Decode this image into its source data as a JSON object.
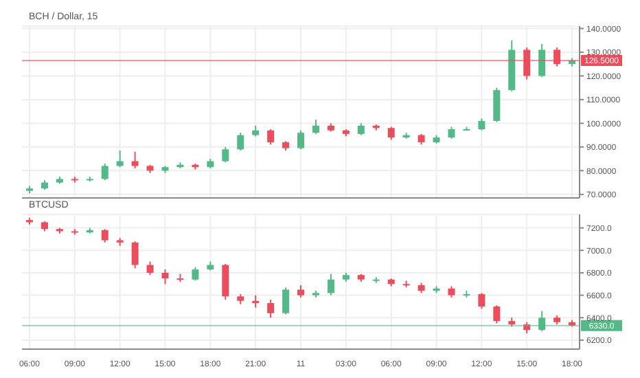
{
  "chart_data": [
    {
      "type": "candlestick",
      "title": "BCH / Dollar, 15",
      "categories": [
        null,
        null,
        null,
        null,
        null,
        null,
        null,
        null,
        null,
        null,
        null,
        null,
        null,
        null,
        null,
        null,
        null,
        null,
        null,
        null,
        null,
        null,
        null,
        null,
        null,
        null,
        null,
        null,
        null,
        null,
        null,
        null,
        null,
        null,
        null,
        null,
        null
      ],
      "ohlc": [
        [
          71.5,
          73.5,
          70.5,
          72.5
        ],
        [
          72.5,
          76,
          72,
          75
        ],
        [
          75,
          77.5,
          74.5,
          76.5
        ],
        [
          76.5,
          77.5,
          75,
          76
        ],
        [
          76,
          77.5,
          75.5,
          76.5
        ],
        [
          76.5,
          83,
          76,
          82
        ],
        [
          82,
          88.5,
          81.5,
          84
        ],
        [
          84,
          88,
          81,
          82
        ],
        [
          82,
          82.5,
          79,
          80
        ],
        [
          80,
          82,
          79,
          81.5
        ],
        [
          81.5,
          83.5,
          81,
          82.5
        ],
        [
          82.5,
          83,
          80.5,
          81.5
        ],
        [
          81.5,
          85,
          81,
          84
        ],
        [
          84,
          90,
          83.5,
          89
        ],
        [
          89,
          96,
          88.5,
          95
        ],
        [
          95,
          99,
          94.5,
          97
        ],
        [
          97,
          97.5,
          91,
          92
        ],
        [
          92,
          92.5,
          88.5,
          89.5
        ],
        [
          89.5,
          97,
          89,
          96
        ],
        [
          96,
          101.5,
          95.5,
          99
        ],
        [
          99,
          100,
          96.5,
          97
        ],
        [
          97,
          97.5,
          94.5,
          95.5
        ],
        [
          95.5,
          100,
          95,
          99
        ],
        [
          99,
          99.5,
          97,
          98
        ],
        [
          98,
          98.5,
          93,
          94
        ],
        [
          94,
          96,
          93.5,
          95
        ],
        [
          95,
          95.5,
          91,
          92
        ],
        [
          92,
          95,
          91.5,
          94
        ],
        [
          94,
          98.5,
          93.5,
          97.5
        ],
        [
          97.5,
          98.5,
          97,
          97.5
        ],
        [
          97.5,
          102,
          97,
          101
        ],
        [
          101,
          115,
          100.5,
          114
        ],
        [
          114,
          135,
          113.5,
          131
        ],
        [
          131,
          132,
          118.5,
          120
        ],
        [
          120,
          133.5,
          119.5,
          131
        ],
        [
          131,
          132,
          124,
          125
        ],
        [
          125,
          127.5,
          124,
          126.5
        ]
      ],
      "ylim": [
        68.5,
        141
      ],
      "yticks": [
        {
          "value": 70,
          "label": "70.0000"
        },
        {
          "value": 80,
          "label": "80.0000"
        },
        {
          "value": 90,
          "label": "90.0000"
        },
        {
          "value": 100,
          "label": "100.0000"
        },
        {
          "value": 110,
          "label": "110.0000"
        },
        {
          "value": 120,
          "label": "120.0000"
        },
        {
          "value": 130,
          "label": "130.0000"
        },
        {
          "value": 140,
          "label": "140.0000"
        }
      ],
      "ref_lines": [
        {
          "axis": "y",
          "value": 126.5,
          "label": "126.5000",
          "color": "#eb4d5c"
        }
      ],
      "grid": true,
      "tick_labels": "y"
    },
    {
      "type": "candlestick",
      "title": "BTCUSD",
      "categories": [
        "06:00",
        null,
        null,
        "09:00",
        null,
        null,
        "12:00",
        null,
        null,
        "15:00",
        null,
        null,
        "18:00",
        null,
        null,
        "21:00",
        null,
        null,
        "11",
        null,
        null,
        "03:00",
        null,
        null,
        "06:00",
        null,
        null,
        "09:00",
        null,
        null,
        "12:00",
        null,
        null,
        "15:00",
        null,
        null,
        "18:00"
      ],
      "ohlc": [
        [
          7270,
          7290,
          7230,
          7250
        ],
        [
          7250,
          7260,
          7170,
          7190
        ],
        [
          7190,
          7200,
          7150,
          7170
        ],
        [
          7170,
          7190,
          7140,
          7160
        ],
        [
          7160,
          7200,
          7150,
          7180
        ],
        [
          7180,
          7190,
          7070,
          7090
        ],
        [
          7090,
          7110,
          7040,
          7070
        ],
        [
          7070,
          7080,
          6840,
          6870
        ],
        [
          6870,
          6900,
          6780,
          6800
        ],
        [
          6800,
          6830,
          6700,
          6750
        ],
        [
          6750,
          6790,
          6720,
          6740
        ],
        [
          6740,
          6850,
          6730,
          6830
        ],
        [
          6830,
          6900,
          6820,
          6870
        ],
        [
          6870,
          6880,
          6560,
          6590
        ],
        [
          6590,
          6610,
          6520,
          6550
        ],
        [
          6550,
          6600,
          6490,
          6530
        ],
        [
          6530,
          6560,
          6400,
          6440
        ],
        [
          6440,
          6670,
          6430,
          6650
        ],
        [
          6650,
          6690,
          6580,
          6600
        ],
        [
          6600,
          6640,
          6580,
          6620
        ],
        [
          6620,
          6790,
          6600,
          6740
        ],
        [
          6740,
          6800,
          6720,
          6780
        ],
        [
          6780,
          6790,
          6720,
          6740
        ],
        [
          6740,
          6760,
          6710,
          6740
        ],
        [
          6740,
          6750,
          6680,
          6700
        ],
        [
          6700,
          6730,
          6670,
          6690
        ],
        [
          6690,
          6710,
          6620,
          6640
        ],
        [
          6640,
          6680,
          6620,
          6660
        ],
        [
          6660,
          6680,
          6580,
          6600
        ],
        [
          6600,
          6640,
          6580,
          6610
        ],
        [
          6610,
          6620,
          6480,
          6500
        ],
        [
          6500,
          6510,
          6350,
          6370
        ],
        [
          6370,
          6400,
          6320,
          6340
        ],
        [
          6340,
          6360,
          6260,
          6290
        ],
        [
          6290,
          6460,
          6280,
          6400
        ],
        [
          6400,
          6420,
          6340,
          6360
        ],
        [
          6360,
          6380,
          6320,
          6330
        ]
      ],
      "ylim": [
        6120,
        7320
      ],
      "yticks": [
        {
          "value": 6200,
          "label": "6200.0"
        },
        {
          "value": 6400,
          "label": "6400.0"
        },
        {
          "value": 6600,
          "label": "6600.0"
        },
        {
          "value": 6800,
          "label": "6800.0"
        },
        {
          "value": 7000,
          "label": "7000.0"
        },
        {
          "value": 7200,
          "label": "7200.0"
        }
      ],
      "ref_lines": [
        {
          "axis": "y",
          "value": 6330,
          "label": "6330.0",
          "color": "#53b987"
        }
      ],
      "grid": true
    }
  ]
}
